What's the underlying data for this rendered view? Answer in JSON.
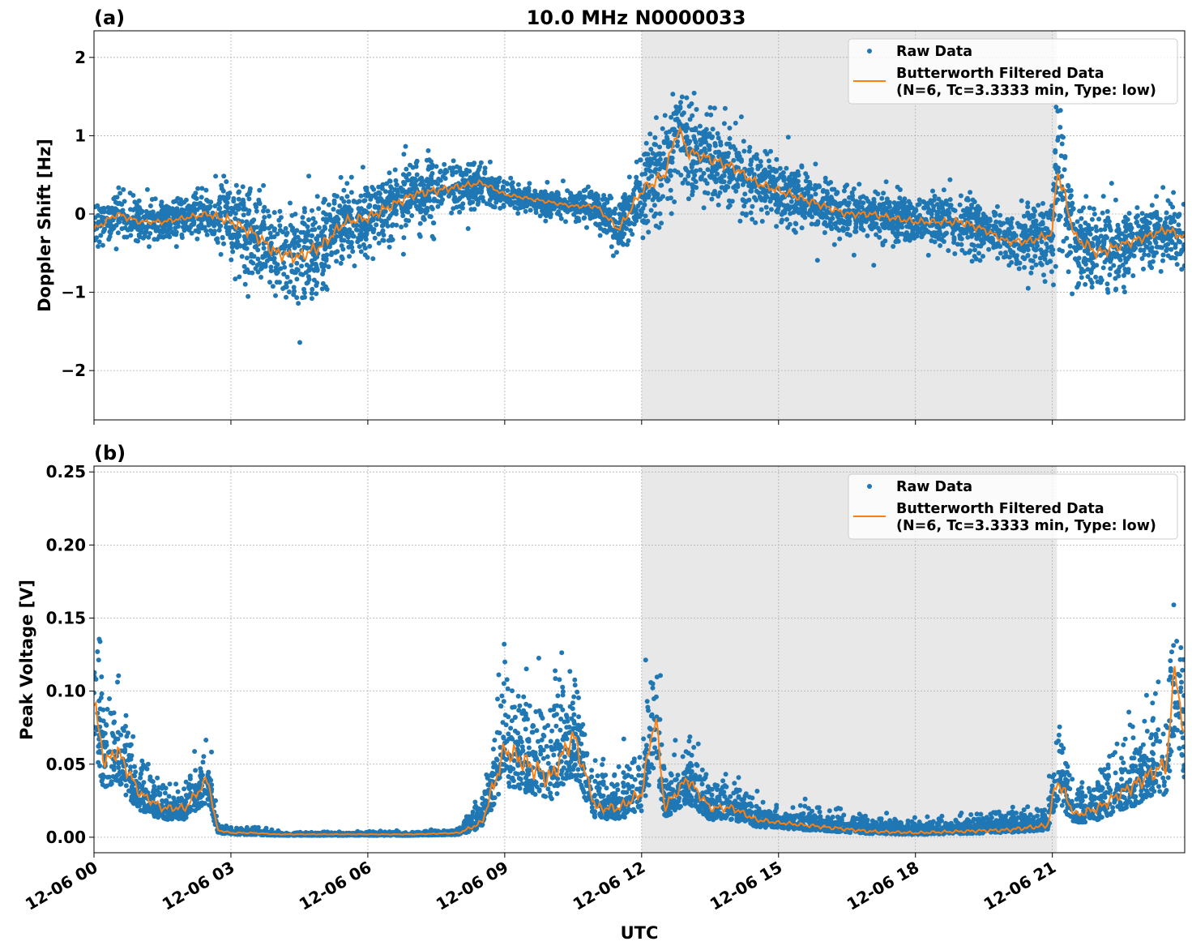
{
  "chart_data": [
    {
      "type": "scatter",
      "panel_label": "(a)",
      "title": "10.0 MHz N0000033",
      "xlabel": "",
      "ylabel": "Doppler Shift [Hz]",
      "xlim_hours": [
        0,
        23.9
      ],
      "ylim": [
        -2.63,
        2.34
      ],
      "yticks": [
        -2,
        -1,
        0,
        1,
        2
      ],
      "ytick_labels": [
        "−2",
        "−1",
        "0",
        "1",
        "2"
      ],
      "grid": true,
      "shaded_span_hours": [
        12.0,
        21.1
      ],
      "legend": {
        "placement": "upper-right",
        "entries": [
          "Raw Data",
          "Butterworth Filtered Data",
          "(N=6, Tc=3.3333 min, Type: low)"
        ]
      },
      "series": [
        {
          "name": "Butterworth Filtered Data (N=6, Tc=3.3333 min, Type: low)",
          "type": "line",
          "color": "#ff7f0e",
          "x": [
            0,
            0.5,
            1,
            1.5,
            2,
            2.5,
            3,
            3.5,
            4,
            4.5,
            5,
            5.5,
            6,
            6.5,
            7,
            7.5,
            8,
            8.5,
            9,
            9.5,
            10,
            10.5,
            11,
            11.5,
            12,
            12.5,
            12.8,
            13,
            13.5,
            14,
            14.5,
            15,
            15.5,
            16,
            16.5,
            17,
            17.5,
            18,
            18.5,
            19,
            19.5,
            20,
            20.5,
            21,
            21.1,
            21.5,
            22,
            22.5,
            23,
            23.5,
            23.9
          ],
          "y": [
            -0.2,
            0.0,
            -0.1,
            -0.1,
            -0.05,
            0.0,
            -0.1,
            -0.25,
            -0.5,
            -0.55,
            -0.4,
            -0.1,
            -0.05,
            0.1,
            0.25,
            0.3,
            0.35,
            0.4,
            0.25,
            0.2,
            0.15,
            0.1,
            0.1,
            -0.2,
            0.3,
            0.5,
            1.1,
            0.8,
            0.7,
            0.6,
            0.4,
            0.3,
            0.2,
            0.1,
            0.0,
            0.0,
            -0.05,
            -0.1,
            -0.1,
            -0.1,
            -0.2,
            -0.35,
            -0.35,
            -0.25,
            0.6,
            -0.3,
            -0.5,
            -0.4,
            -0.3,
            -0.2,
            -0.3
          ]
        },
        {
          "name": "Raw Data",
          "type": "scatter",
          "color": "#1f77b4",
          "spread": [
            0.2,
            0.2,
            0.15,
            0.15,
            0.15,
            0.2,
            0.35,
            0.35,
            0.4,
            0.4,
            0.35,
            0.3,
            0.3,
            0.3,
            0.25,
            0.25,
            0.2,
            0.15,
            0.1,
            0.1,
            0.1,
            0.1,
            0.15,
            0.2,
            0.35,
            0.35,
            0.4,
            0.35,
            0.3,
            0.3,
            0.25,
            0.25,
            0.25,
            0.2,
            0.2,
            0.2,
            0.2,
            0.2,
            0.2,
            0.25,
            0.2,
            0.2,
            0.25,
            0.25,
            0.6,
            0.3,
            0.35,
            0.3,
            0.25,
            0.25,
            0.25
          ]
        }
      ]
    },
    {
      "type": "scatter",
      "panel_label": "(b)",
      "title": "",
      "xlabel": "UTC",
      "ylabel": "Peak Voltage [V]",
      "xlim_hours": [
        0,
        23.9
      ],
      "ylim": [
        -0.0106,
        0.254
      ],
      "yticks": [
        0,
        0.05,
        0.1,
        0.15,
        0.2,
        0.25
      ],
      "ytick_labels": [
        "0.00",
        "0.05",
        "0.10",
        "0.15",
        "0.20",
        "0.25"
      ],
      "xticks_hours": [
        0,
        3,
        6,
        9,
        12,
        15,
        18,
        21
      ],
      "xtick_labels": [
        "12-06 00",
        "12-06 03",
        "12-06 06",
        "12-06 09",
        "12-06 12",
        "12-06 15",
        "12-06 18",
        "12-06 21"
      ],
      "grid": true,
      "shaded_span_hours": [
        12.0,
        21.1
      ],
      "legend": {
        "placement": "upper-right",
        "entries": [
          "Raw Data",
          "Butterworth Filtered Data",
          "(N=6, Tc=3.3333 min, Type: low)"
        ]
      },
      "series": [
        {
          "name": "Butterworth Filtered Data (N=6, Tc=3.3333 min, Type: low)",
          "type": "line",
          "color": "#ff7f0e",
          "x": [
            0,
            0.25,
            0.5,
            1,
            1.5,
            2,
            2.5,
            2.7,
            3,
            3.5,
            4,
            5,
            6,
            7,
            8,
            8.5,
            8.8,
            9,
            9.5,
            10,
            10.5,
            11,
            11.5,
            12,
            12.3,
            12.5,
            13,
            13.5,
            14,
            14.5,
            15,
            16,
            17,
            18,
            19,
            20,
            20.9,
            21.1,
            21.5,
            22,
            22.5,
            23,
            23.5,
            23.7,
            23.9
          ],
          "y": [
            0.09,
            0.05,
            0.06,
            0.03,
            0.02,
            0.02,
            0.04,
            0.005,
            0.003,
            0.003,
            0.002,
            0.002,
            0.002,
            0.002,
            0.003,
            0.01,
            0.04,
            0.06,
            0.05,
            0.04,
            0.07,
            0.02,
            0.02,
            0.03,
            0.085,
            0.02,
            0.04,
            0.02,
            0.02,
            0.012,
            0.01,
            0.007,
            0.004,
            0.003,
            0.004,
            0.005,
            0.008,
            0.04,
            0.015,
            0.02,
            0.03,
            0.04,
            0.05,
            0.12,
            0.06
          ]
        },
        {
          "name": "Raw Data",
          "type": "scatter",
          "color": "#1f77b4",
          "spread": [
            0.04,
            0.03,
            0.03,
            0.015,
            0.012,
            0.012,
            0.02,
            0.004,
            0.002,
            0.002,
            0.001,
            0.001,
            0.001,
            0.001,
            0.002,
            0.01,
            0.03,
            0.035,
            0.035,
            0.035,
            0.035,
            0.015,
            0.015,
            0.02,
            0.04,
            0.015,
            0.02,
            0.012,
            0.012,
            0.008,
            0.006,
            0.006,
            0.005,
            0.004,
            0.005,
            0.006,
            0.008,
            0.03,
            0.012,
            0.015,
            0.02,
            0.025,
            0.03,
            0.05,
            0.04
          ]
        }
      ]
    }
  ],
  "colors": {
    "raw": "#1f77b4",
    "filtered": "#ff7f0e",
    "shade": "#e8e8e8",
    "grid": "#b0b0b0"
  }
}
